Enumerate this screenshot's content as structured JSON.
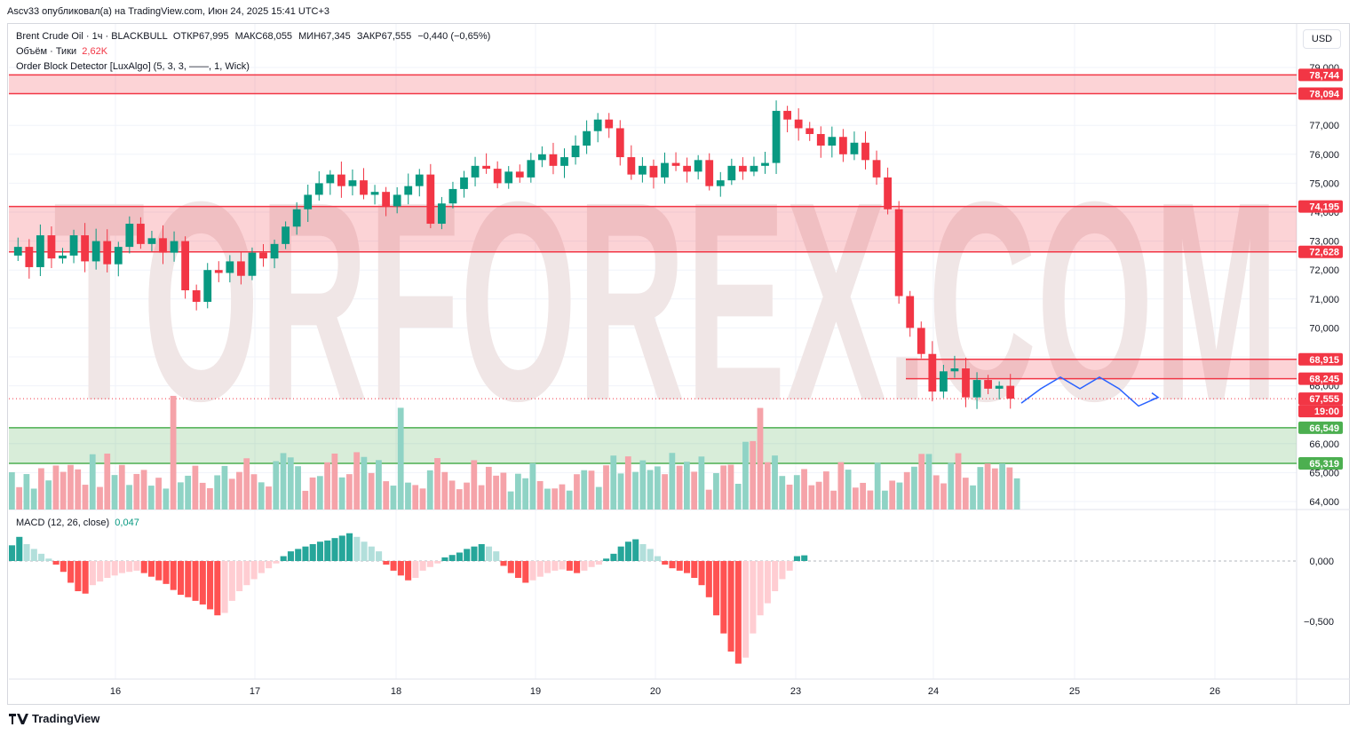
{
  "header": {
    "publisher": "Ascv33 опубликовал(а) на TradingView.com, Июн 24, 2025 15:41 UTC+3",
    "currency_button": "USD"
  },
  "legend": {
    "symbol_line": "Brent Crude Oil · 1ч · BLACKBULL",
    "open_label": "ОТКР",
    "open": "67,995",
    "high_label": "МАКС",
    "high": "68,055",
    "low_label": "МИН",
    "low": "67,345",
    "close_label": "ЗАКР",
    "close": "67,555",
    "change": "−0,440 (−0,65%)",
    "volume_label": "Объём · Тики",
    "volume": "2,62K",
    "indicator_label": "Order Block Detector [LuxAlgo] (5, 3, 3, ——, 1, Wick)",
    "macd_label": "MACD (12, 26, close)",
    "macd_value": "0,047"
  },
  "watermark": "TORFOREX.COM",
  "footer": {
    "brand": "TradingView"
  },
  "colors": {
    "up": "#089981",
    "down": "#f23645",
    "vol_up": "#8fd3c5",
    "vol_down": "#f5a3a9",
    "hist_up_strong": "#26a69a",
    "hist_up_weak": "#b2dfdb",
    "hist_down_strong": "#ff5252",
    "hist_down_weak": "#ffcdd2",
    "bear_zone": "#f23645",
    "bull_zone": "#4caf50",
    "projection": "#2962ff"
  },
  "chart_data": {
    "type": "candlestick",
    "symbol": "Brent Crude Oil",
    "timeframe": "1ч",
    "x_ticks": [
      "16",
      "17",
      "18",
      "19",
      "20",
      "23",
      "24",
      "25",
      "26"
    ],
    "y_ticks": [
      "79,000",
      "77,000",
      "76,000",
      "75,000",
      "74,000",
      "73,000",
      "72,000",
      "71,000",
      "70,000",
      "69,000",
      "68,000",
      "66,000",
      "65,000",
      "64,000"
    ],
    "ylim": [
      63.3,
      79.5
    ],
    "price_labels": [
      {
        "value": "78,744",
        "kind": "bear"
      },
      {
        "value": "78,094",
        "kind": "bear"
      },
      {
        "value": "74,195",
        "kind": "bear"
      },
      {
        "value": "72,628",
        "kind": "bear"
      },
      {
        "value": "68,915",
        "kind": "bear"
      },
      {
        "value": "68,245",
        "kind": "bear"
      },
      {
        "value": "67,555",
        "kind": "last"
      },
      {
        "value": "19:00",
        "kind": "last_time"
      },
      {
        "value": "66,549",
        "kind": "bull"
      },
      {
        "value": "65,319",
        "kind": "bull"
      }
    ],
    "order_blocks": [
      {
        "type": "bearish",
        "top": 78.744,
        "bottom": 78.094
      },
      {
        "type": "bearish",
        "top": 74.195,
        "bottom": 72.628
      },
      {
        "type": "bearish",
        "top": 68.915,
        "bottom": 68.245
      },
      {
        "type": "bullish",
        "top": 66.549,
        "bottom": 65.319
      }
    ],
    "last_price": 67.555,
    "close_path": [
      72.8,
      72.1,
      73.2,
      72.4,
      72.5,
      73.2,
      72.3,
      73.0,
      72.2,
      72.8,
      73.6,
      72.9,
      73.1,
      72.6,
      73.0,
      71.3,
      70.9,
      72.0,
      71.9,
      72.3,
      71.8,
      72.6,
      72.4,
      72.9,
      73.5,
      74.1,
      74.6,
      75.0,
      75.3,
      74.9,
      75.1,
      74.6,
      74.7,
      74.2,
      74.6,
      74.9,
      75.3,
      73.6,
      74.3,
      74.8,
      75.2,
      75.6,
      75.5,
      75.0,
      75.4,
      75.2,
      75.8,
      76.0,
      75.6,
      75.9,
      76.3,
      76.8,
      77.2,
      76.9,
      75.9,
      75.3,
      75.6,
      75.2,
      75.7,
      75.6,
      75.4,
      75.8,
      74.9,
      75.1,
      75.6,
      75.4,
      75.6,
      75.7,
      77.5,
      77.2,
      76.9,
      76.7,
      76.3,
      76.6,
      76.0,
      76.4,
      75.8,
      75.2,
      74.1,
      71.1,
      70.0,
      69.1,
      67.8,
      68.5,
      68.6,
      67.6,
      68.2,
      67.9,
      68.0,
      67.555
    ],
    "projection": [
      67.4,
      67.9,
      68.3,
      67.9,
      68.3,
      67.9,
      67.3,
      67.6
    ],
    "volume_bars": 138,
    "macd_label": "MACD (12, 26, close)",
    "macd_value": 0.047,
    "macd_ticks": [
      "0,000",
      "−0,500"
    ],
    "macd_histogram": [
      0.13,
      0.2,
      0.14,
      0.1,
      0.06,
      0.02,
      -0.03,
      -0.09,
      -0.18,
      -0.25,
      -0.27,
      -0.2,
      -0.17,
      -0.14,
      -0.12,
      -0.1,
      -0.09,
      -0.08,
      -0.1,
      -0.13,
      -0.16,
      -0.19,
      -0.24,
      -0.28,
      -0.3,
      -0.33,
      -0.36,
      -0.4,
      -0.45,
      -0.43,
      -0.33,
      -0.25,
      -0.2,
      -0.15,
      -0.1,
      -0.06,
      -0.02,
      0.04,
      0.08,
      0.1,
      0.12,
      0.14,
      0.16,
      0.17,
      0.19,
      0.21,
      0.23,
      0.2,
      0.16,
      0.12,
      0.08,
      -0.03,
      -0.08,
      -0.12,
      -0.16,
      -0.14,
      -0.08,
      -0.05,
      -0.02,
      0.03,
      0.05,
      0.07,
      0.1,
      0.12,
      0.14,
      0.12,
      0.08,
      -0.04,
      -0.1,
      -0.14,
      -0.18,
      -0.16,
      -0.13,
      -0.1,
      -0.08,
      -0.07,
      -0.08,
      -0.1,
      -0.08,
      -0.05,
      -0.03,
      0.02,
      0.06,
      0.12,
      0.16,
      0.18,
      0.14,
      0.1,
      0.04,
      -0.03,
      -0.06,
      -0.08,
      -0.1,
      -0.14,
      -0.2,
      -0.3,
      -0.45,
      -0.6,
      -0.75,
      -0.85,
      -0.8,
      -0.6,
      -0.45,
      -0.35,
      -0.25,
      -0.15,
      -0.08,
      0.04,
      0.047
    ]
  }
}
